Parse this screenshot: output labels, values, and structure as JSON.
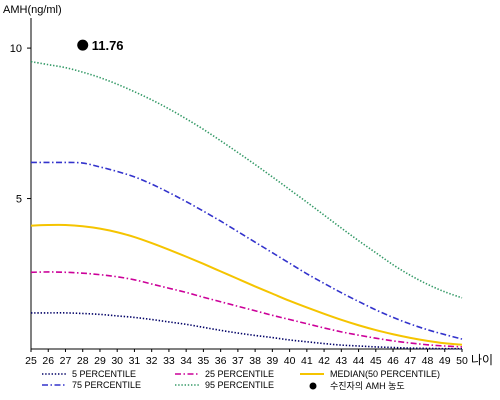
{
  "chart_data": {
    "type": "line",
    "ylabel": "AMH(ng/ml)",
    "xlabel": "나이",
    "x": [
      25,
      26,
      27,
      28,
      29,
      30,
      31,
      32,
      33,
      34,
      35,
      36,
      37,
      38,
      39,
      40,
      41,
      42,
      43,
      44,
      45,
      46,
      47,
      48,
      49,
      50
    ],
    "xlim": [
      25,
      50
    ],
    "ylim": [
      0,
      11
    ],
    "yticks": [
      5,
      10
    ],
    "grid": false,
    "legend_position": "bottom",
    "series": [
      {
        "name": "5 PERCENTILE",
        "color": "#000066",
        "style": "dotted",
        "values": [
          1.2,
          1.2,
          1.2,
          1.18,
          1.15,
          1.1,
          1.05,
          0.98,
          0.9,
          0.82,
          0.72,
          0.62,
          0.53,
          0.45,
          0.38,
          0.3,
          0.24,
          0.18,
          0.13,
          0.1,
          0.07,
          0.05,
          0.03,
          0.02,
          0.01,
          0.01
        ]
      },
      {
        "name": "25 PERCENTILE",
        "color": "#cc0099",
        "style": "dashdot",
        "values": [
          2.55,
          2.56,
          2.55,
          2.52,
          2.47,
          2.4,
          2.3,
          2.16,
          2.02,
          1.88,
          1.72,
          1.57,
          1.42,
          1.27,
          1.12,
          0.98,
          0.84,
          0.7,
          0.57,
          0.46,
          0.36,
          0.27,
          0.2,
          0.14,
          0.1,
          0.07
        ]
      },
      {
        "name": "MEDIAN(50 PERCENTILE)",
        "color": "#f5c400",
        "style": "solid",
        "values": [
          4.1,
          4.12,
          4.12,
          4.08,
          4.0,
          3.88,
          3.72,
          3.52,
          3.3,
          3.07,
          2.83,
          2.58,
          2.33,
          2.08,
          1.84,
          1.6,
          1.38,
          1.17,
          0.97,
          0.79,
          0.63,
          0.49,
          0.37,
          0.27,
          0.19,
          0.14
        ]
      },
      {
        "name": "75 PERCENTILE",
        "color": "#3333cc",
        "style": "dashdot",
        "values": [
          6.2,
          6.2,
          6.2,
          6.18,
          6.05,
          5.9,
          5.72,
          5.48,
          5.2,
          4.9,
          4.58,
          4.25,
          3.9,
          3.55,
          3.2,
          2.85,
          2.5,
          2.18,
          1.87,
          1.58,
          1.3,
          1.05,
          0.83,
          0.64,
          0.48,
          0.33
        ]
      },
      {
        "name": "95 PERCENTILE",
        "color": "#339966",
        "style": "dotted",
        "values": [
          9.55,
          9.45,
          9.35,
          9.2,
          9.02,
          8.8,
          8.55,
          8.28,
          7.98,
          7.65,
          7.3,
          6.92,
          6.53,
          6.13,
          5.72,
          5.3,
          4.88,
          4.45,
          4.02,
          3.6,
          3.2,
          2.8,
          2.45,
          2.15,
          1.9,
          1.7
        ]
      }
    ],
    "marker": {
      "name": "수진자의 AMH 농도",
      "x": 28,
      "y": 10.1,
      "label": "11.76"
    }
  }
}
